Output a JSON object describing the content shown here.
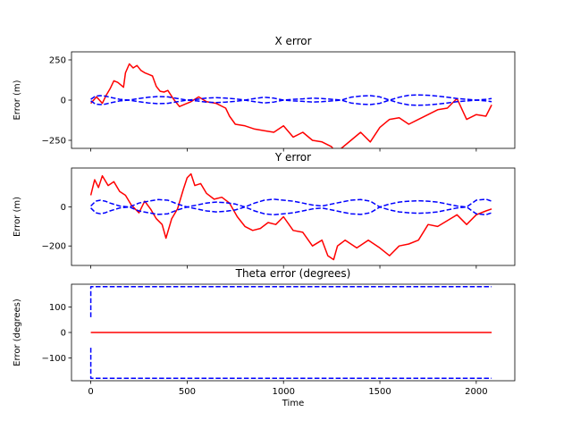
{
  "chart_data": [
    {
      "type": "line",
      "title": "X error",
      "ylabel": "Error (m)",
      "xlabel": "",
      "xlim": [
        -100,
        2200
      ],
      "ylim": [
        -300,
        300
      ],
      "xticks": [
        0,
        500,
        1000,
        1500,
        2000
      ],
      "yticks": [
        -250,
        0,
        250
      ],
      "ytick_labels": [
        "−250",
        "0",
        "250"
      ],
      "xtick_labels_visible": false,
      "colors": {
        "error": "#ff0000",
        "bound": "#0000ff"
      },
      "series": [
        {
          "role": "error",
          "style": "solid",
          "x": [
            0,
            30,
            60,
            80,
            100,
            120,
            140,
            170,
            180,
            200,
            220,
            240,
            260,
            280,
            300,
            320,
            340,
            360,
            380,
            400,
            430,
            460,
            500,
            520,
            560,
            600,
            650,
            700,
            720,
            750,
            800,
            850,
            900,
            950,
            1000,
            1050,
            1100,
            1150,
            1200,
            1250,
            1270,
            1300,
            1350,
            1400,
            1450,
            1500,
            1550,
            1600,
            1650,
            1700,
            1750,
            1800,
            1850,
            1900,
            1950,
            2000,
            2050,
            2080
          ],
          "y": [
            -20,
            20,
            -20,
            30,
            70,
            120,
            110,
            80,
            170,
            225,
            200,
            215,
            185,
            170,
            160,
            150,
            85,
            55,
            50,
            60,
            5,
            -40,
            -20,
            -10,
            20,
            -10,
            -20,
            -50,
            -100,
            -150,
            -160,
            -180,
            -190,
            -200,
            -160,
            -230,
            -200,
            -250,
            -260,
            -290,
            -330,
            -300,
            -250,
            -200,
            -260,
            -170,
            -120,
            -110,
            -150,
            -120,
            -90,
            -60,
            -50,
            10,
            -120,
            -90,
            -100,
            -30
          ]
        },
        {
          "role": "upper bound",
          "style": "dashed",
          "x": [
            0,
            25,
            50,
            75,
            100,
            150,
            200,
            250,
            300,
            350,
            400,
            450,
            500,
            550,
            600,
            650,
            700,
            750,
            800,
            850,
            900,
            950,
            1000,
            1050,
            1100,
            1150,
            1200,
            1250,
            1300,
            1350,
            1400,
            1450,
            1500,
            1550,
            1600,
            1650,
            1700,
            1750,
            1800,
            1850,
            1900,
            1950,
            2000,
            2050,
            2080
          ],
          "y": [
            5,
            25,
            28,
            25,
            18,
            5,
            0,
            10,
            18,
            22,
            20,
            10,
            0,
            5,
            12,
            15,
            12,
            8,
            0,
            10,
            18,
            12,
            0,
            5,
            8,
            12,
            10,
            5,
            0,
            18,
            25,
            28,
            20,
            0,
            18,
            30,
            32,
            30,
            25,
            18,
            10,
            5,
            0,
            5,
            10
          ]
        },
        {
          "role": "lower bound",
          "style": "dashed",
          "x": [
            0,
            25,
            50,
            75,
            100,
            150,
            200,
            250,
            300,
            350,
            400,
            450,
            500,
            550,
            600,
            650,
            700,
            750,
            800,
            850,
            900,
            950,
            1000,
            1050,
            1100,
            1150,
            1200,
            1250,
            1300,
            1350,
            1400,
            1450,
            1500,
            1550,
            1600,
            1650,
            1700,
            1750,
            1800,
            1850,
            1900,
            1950,
            2000,
            2050,
            2080
          ],
          "y": [
            -5,
            -25,
            -28,
            -25,
            -18,
            -5,
            0,
            -10,
            -18,
            -22,
            -20,
            -10,
            0,
            -5,
            -12,
            -15,
            -12,
            -8,
            0,
            -10,
            -18,
            -12,
            0,
            -5,
            -8,
            -12,
            -10,
            -5,
            0,
            -18,
            -25,
            -28,
            -20,
            0,
            -18,
            -30,
            -32,
            -30,
            -25,
            -18,
            -10,
            -5,
            0,
            -5,
            -10
          ]
        }
      ]
    },
    {
      "type": "line",
      "title": "Y error",
      "ylabel": "Error (m)",
      "xlabel": "",
      "xlim": [
        -100,
        2200
      ],
      "ylim": [
        -300,
        200
      ],
      "xticks": [
        0,
        500,
        1000,
        1500,
        2000
      ],
      "yticks": [
        -200,
        0
      ],
      "ytick_labels": [
        "−200",
        "0"
      ],
      "xtick_labels_visible": false,
      "colors": {
        "error": "#ff0000",
        "bound": "#0000ff"
      },
      "series": [
        {
          "role": "error",
          "style": "solid",
          "x": [
            0,
            20,
            40,
            60,
            90,
            120,
            150,
            180,
            210,
            250,
            280,
            310,
            340,
            370,
            390,
            420,
            450,
            480,
            500,
            520,
            540,
            570,
            600,
            640,
            680,
            720,
            760,
            800,
            840,
            880,
            920,
            960,
            1000,
            1050,
            1100,
            1150,
            1200,
            1230,
            1260,
            1280,
            1320,
            1380,
            1440,
            1500,
            1550,
            1600,
            1650,
            1700,
            1750,
            1800,
            1850,
            1900,
            1950,
            2000,
            2050,
            2080
          ],
          "y": [
            60,
            140,
            100,
            160,
            110,
            130,
            80,
            60,
            10,
            -30,
            30,
            -10,
            -60,
            -90,
            -160,
            -60,
            -10,
            90,
            150,
            170,
            110,
            120,
            70,
            40,
            50,
            20,
            -50,
            -100,
            -120,
            -110,
            -80,
            -90,
            -50,
            -120,
            -130,
            -200,
            -170,
            -250,
            -270,
            -200,
            -170,
            -210,
            -170,
            -210,
            -250,
            -200,
            -190,
            -170,
            -90,
            -100,
            -70,
            -40,
            -90,
            -40,
            -20,
            -10
          ]
        },
        {
          "role": "upper bound",
          "style": "dashed",
          "x": [
            0,
            25,
            50,
            75,
            100,
            150,
            200,
            250,
            300,
            350,
            400,
            450,
            500,
            550,
            600,
            650,
            700,
            750,
            800,
            850,
            900,
            950,
            1000,
            1050,
            1100,
            1150,
            1200,
            1250,
            1300,
            1350,
            1400,
            1450,
            1500,
            1550,
            1600,
            1650,
            1700,
            1750,
            1800,
            1850,
            1900,
            1950,
            2000,
            2050,
            2080
          ],
          "y": [
            5,
            30,
            35,
            30,
            20,
            5,
            0,
            20,
            30,
            38,
            35,
            15,
            0,
            10,
            20,
            25,
            22,
            15,
            0,
            20,
            35,
            40,
            35,
            30,
            20,
            10,
            5,
            15,
            25,
            35,
            38,
            30,
            0,
            15,
            25,
            30,
            32,
            30,
            25,
            15,
            5,
            0,
            35,
            40,
            30
          ]
        },
        {
          "role": "lower bound",
          "style": "dashed",
          "x": [
            0,
            25,
            50,
            75,
            100,
            150,
            200,
            250,
            300,
            350,
            400,
            450,
            500,
            550,
            600,
            650,
            700,
            750,
            800,
            850,
            900,
            950,
            1000,
            1050,
            1100,
            1150,
            1200,
            1250,
            1300,
            1350,
            1400,
            1450,
            1500,
            1550,
            1600,
            1650,
            1700,
            1750,
            1800,
            1850,
            1900,
            1950,
            2000,
            2050,
            2080
          ],
          "y": [
            -5,
            -30,
            -35,
            -30,
            -20,
            -5,
            0,
            -20,
            -30,
            -38,
            -35,
            -15,
            0,
            -10,
            -20,
            -25,
            -22,
            -15,
            0,
            -20,
            -35,
            -40,
            -35,
            -30,
            -20,
            -10,
            -5,
            -15,
            -25,
            -35,
            -38,
            -30,
            0,
            -15,
            -25,
            -30,
            -32,
            -30,
            -25,
            -15,
            -5,
            0,
            -35,
            -40,
            -30
          ]
        }
      ]
    },
    {
      "type": "line",
      "title": "Theta error (degrees)",
      "ylabel": "Error (degrees)",
      "xlabel": "Time",
      "xlim": [
        -100,
        2200
      ],
      "ylim": [
        -190,
        190
      ],
      "xticks": [
        0,
        500,
        1000,
        1500,
        2000
      ],
      "yticks": [
        -100,
        0,
        100
      ],
      "ytick_labels": [
        "−100",
        "0",
        "100"
      ],
      "xtick_labels_visible": true,
      "colors": {
        "error": "#ff0000",
        "bound": "#0000ff"
      },
      "series": [
        {
          "role": "error",
          "style": "solid",
          "x": [
            0,
            200,
            400,
            600,
            800,
            1000,
            1200,
            1400,
            1600,
            1800,
            2000,
            2080
          ],
          "y": [
            0,
            0,
            0,
            0,
            0,
            0,
            0,
            0,
            0,
            0,
            0,
            0
          ]
        },
        {
          "role": "upper bound",
          "style": "dashed",
          "x": [
            0,
            0,
            5,
            2080
          ],
          "y": [
            60,
            180,
            180,
            180
          ]
        },
        {
          "role": "lower bound",
          "style": "dashed",
          "x": [
            0,
            0,
            5,
            2080
          ],
          "y": [
            -60,
            -180,
            -180,
            -180
          ]
        }
      ]
    }
  ]
}
